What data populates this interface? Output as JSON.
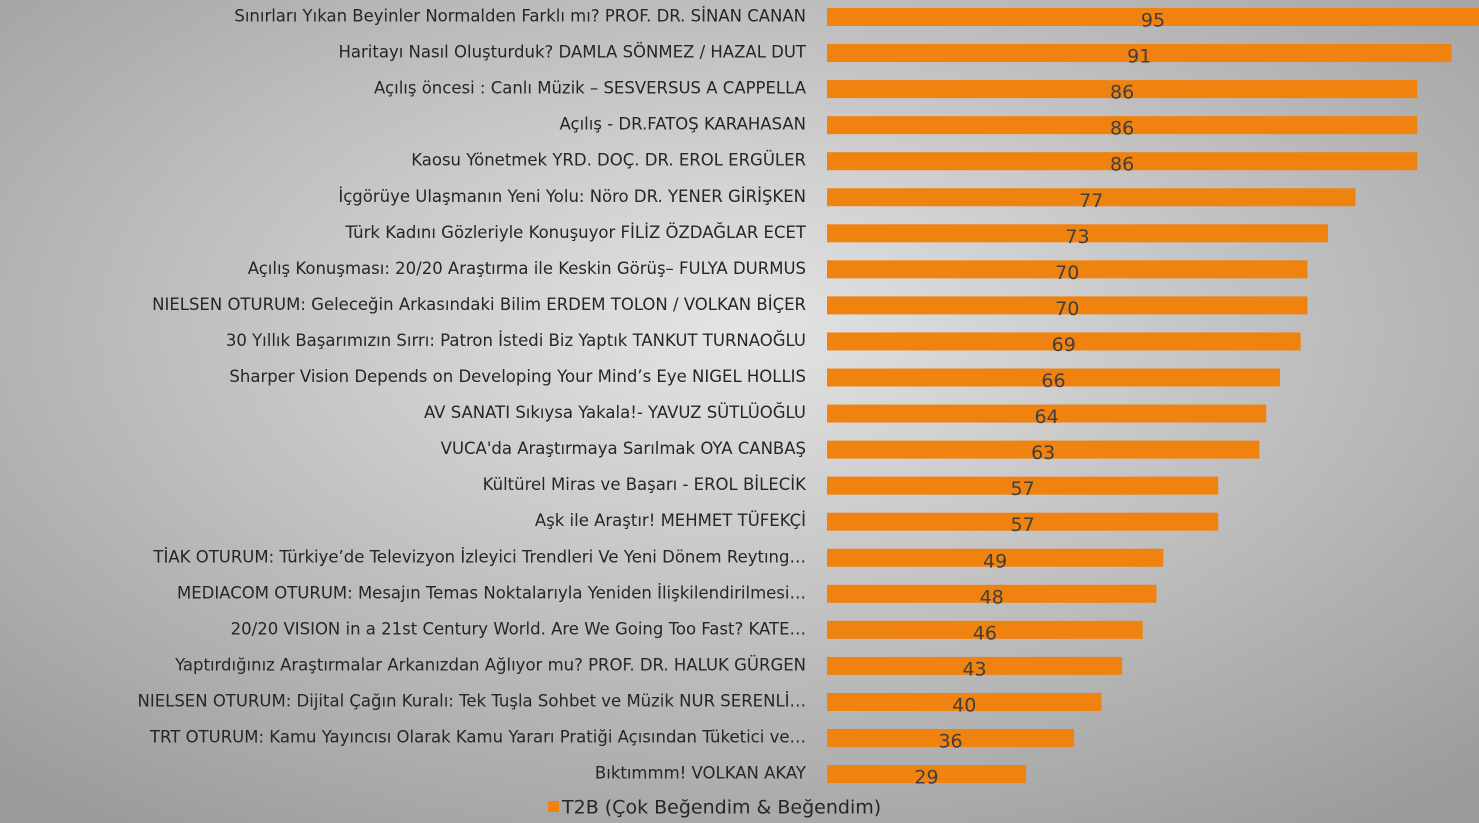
{
  "chart_data": {
    "type": "bar",
    "orientation": "horizontal",
    "categories": [
      "Sınırları Yıkan Beyinler Normalden Farklı mı? PROF. DR. SİNAN CANAN",
      "Haritayı Nasıl Oluşturduk? DAMLA SÖNMEZ / HAZAL DUT",
      "Açılış öncesi : Canlı Müzik – SESVERSUS A CAPPELLA",
      "Açılış - DR.FATOŞ KARAHASAN",
      "Kaosu Yönetmek YRD. DOÇ. DR. EROL ERGÜLER",
      "İçgörüye Ulaşmanın Yeni Yolu: Nöro DR. YENER GİRİŞKEN",
      "Türk Kadını Gözleriyle Konuşuyor FİLİZ ÖZDAĞLAR ECET",
      "Açılış Konuşması: 20/20 Araştırma ile Keskin Görüş– FULYA DURMUS",
      "NIELSEN OTURUM: Geleceğin Arkasındaki Bilim ERDEM TOLON / VOLKAN BİÇER",
      "30 Yıllık Başarımızın Sırrı: Patron İstedi Biz Yaptık TANKUT TURNAOĞLU",
      "Sharper Vision Depends on Developing Your Mind’s Eye NIGEL HOLLIS",
      "AV SANATI Sıkıysa Yakala!- YAVUZ SÜTLÜOĞLU",
      "VUCA'da Araştırmaya Sarılmak OYA CANBAŞ",
      "Kültürel Miras ve Başarı - EROL BİLECİK",
      "Aşk ile Araştır! MEHMET TÜFEKÇİ",
      "TİAK OTURUM: Türkiye’de Televizyon İzleyici Trendleri Ve Yeni Dönem Reytıng…",
      "MEDIACOM OTURUM: Mesajın Temas Noktalarıyla Yeniden İlişkilendirilmesi…",
      "20/20 VISION in a 21st Century World. Are We Going Too Fast? KATE…",
      "Yaptırdığınız Araştırmalar Arkanızdan Ağlıyor mu? PROF. DR. HALUK GÜRGEN",
      "NIELSEN OTURUM: Dijital Çağın Kuralı: Tek Tuşla Sohbet ve Müzik NUR SERENLİ…",
      "TRT OTURUM: Kamu Yayıncısı Olarak Kamu Yararı Pratiği Açısından Tüketici ve…",
      "Bıktımmm! VOLKAN AKAY"
    ],
    "series": [
      {
        "name": "T2B (Çok Beğendim & Beğendim)",
        "color": "#f0820f",
        "values": [
          95,
          91,
          86,
          86,
          86,
          77,
          73,
          70,
          70,
          69,
          66,
          64,
          63,
          57,
          57,
          49,
          48,
          46,
          43,
          40,
          36,
          29
        ]
      }
    ],
    "xlim": [
      0,
      95
    ],
    "legend": "bottom"
  }
}
